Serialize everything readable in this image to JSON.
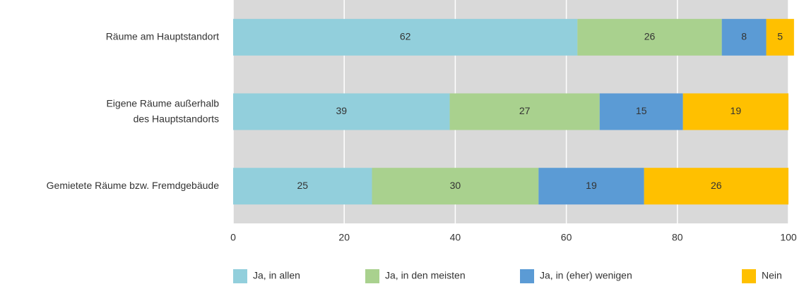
{
  "chart_data": {
    "type": "stacked_barh",
    "categories": [
      "Räume am Hauptstandort",
      [
        "Eigene Räume außerhalb",
        "des Hauptstandorts"
      ],
      "Gemietete Räume bzw. Fremdgebäude"
    ],
    "series": [
      {
        "name": "Ja, in allen",
        "color": "#92cfdc",
        "values": [
          62,
          39,
          25
        ]
      },
      {
        "name": "Ja, in den meisten",
        "color": "#a9d18e",
        "values": [
          26,
          27,
          30
        ]
      },
      {
        "name": "Ja, in (eher) wenigen",
        "color": "#5b9bd5",
        "values": [
          8,
          15,
          19
        ]
      },
      {
        "name": "Nein",
        "color": "#ffc000",
        "values": [
          5,
          19,
          26
        ]
      }
    ],
    "xlim": [
      0,
      100
    ],
    "xticks": [
      0,
      20,
      40,
      60,
      80,
      100
    ],
    "grid": true,
    "legend": "bottom"
  }
}
